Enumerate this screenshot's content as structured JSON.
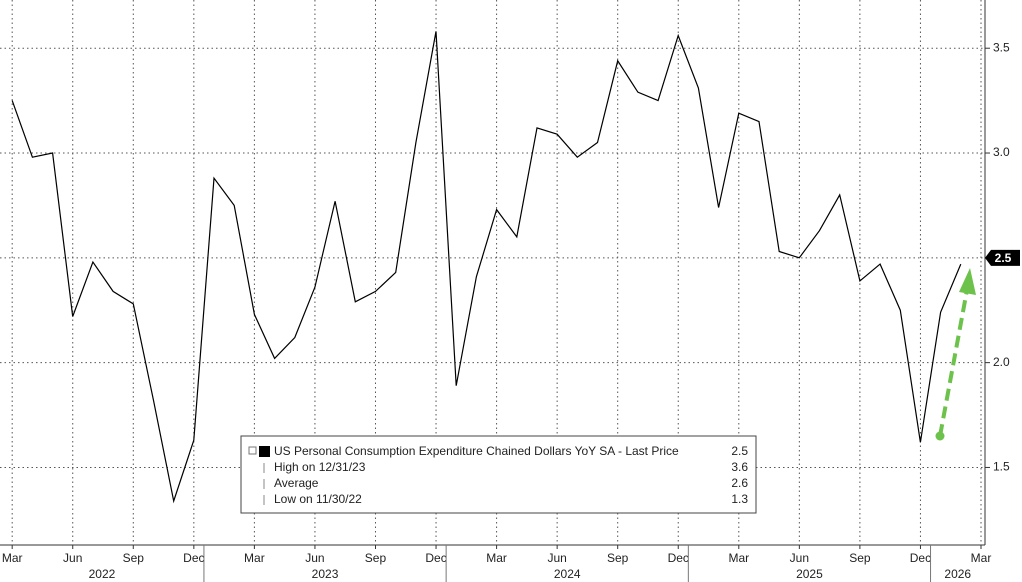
{
  "chart_data": {
    "type": "line",
    "x": [
      "2022-03",
      "2022-04",
      "2022-05",
      "2022-06",
      "2022-07",
      "2022-08",
      "2022-09",
      "2022-10",
      "2022-11",
      "2022-12",
      "2023-01",
      "2023-02",
      "2023-03",
      "2023-04",
      "2023-05",
      "2023-06",
      "2023-07",
      "2023-08",
      "2023-09",
      "2023-10",
      "2023-11",
      "2023-12",
      "2024-01",
      "2024-02",
      "2024-03",
      "2024-04",
      "2024-05",
      "2024-06",
      "2024-07",
      "2024-08",
      "2024-09",
      "2024-10",
      "2024-11",
      "2024-12",
      "2025-01",
      "2025-02",
      "2025-03",
      "2025-04",
      "2025-05",
      "2025-06",
      "2025-07",
      "2025-08",
      "2025-09",
      "2025-10",
      "2025-11",
      "2025-12",
      "2026-01",
      "2026-02"
    ],
    "series": [
      {
        "name": "US Personal Consumption Expenditure Chained Dollars YoY SA - Last Price",
        "color": "#000000",
        "values": [
          3.25,
          2.98,
          3.0,
          2.22,
          2.48,
          2.34,
          2.28,
          1.82,
          1.34,
          1.63,
          2.88,
          2.75,
          2.23,
          2.02,
          2.12,
          2.36,
          2.77,
          2.29,
          2.34,
          2.43,
          3.05,
          3.58,
          1.89,
          2.41,
          2.73,
          2.6,
          3.12,
          3.09,
          2.98,
          3.05,
          3.44,
          3.29,
          3.25,
          3.56,
          3.31,
          2.74,
          3.19,
          3.15,
          2.53,
          2.5,
          2.63,
          2.8,
          2.39,
          2.47,
          2.25,
          1.62,
          2.24,
          2.47
        ]
      }
    ],
    "xlim": [
      "2022-02",
      "2026-03"
    ],
    "xticks": [
      {
        "value": "2022-03",
        "label": "Mar"
      },
      {
        "value": "2022-06",
        "label": "Jun"
      },
      {
        "value": "2022-09",
        "label": "Sep"
      },
      {
        "value": "2022-12",
        "label": "Dec"
      },
      {
        "value": "2023-03",
        "label": "Mar"
      },
      {
        "value": "2023-06",
        "label": "Jun"
      },
      {
        "value": "2023-09",
        "label": "Sep"
      },
      {
        "value": "2023-12",
        "label": "Dec"
      },
      {
        "value": "2024-03",
        "label": "Mar"
      },
      {
        "value": "2024-06",
        "label": "Jun"
      },
      {
        "value": "2024-09",
        "label": "Sep"
      },
      {
        "value": "2024-12",
        "label": "Dec"
      },
      {
        "value": "2025-03",
        "label": "Mar"
      },
      {
        "value": "2025-06",
        "label": "Jun"
      },
      {
        "value": "2025-09",
        "label": "Sep"
      },
      {
        "value": "2025-12",
        "label": "Dec"
      },
      {
        "value": "2026-03",
        "label": "Mar"
      }
    ],
    "years": [
      "2022",
      "2023",
      "2024",
      "2025",
      "2026"
    ],
    "ylim": [
      1.13,
      3.73
    ],
    "yticks": [
      1.5,
      2.0,
      2.5,
      3.0,
      3.5
    ],
    "yticks_labels": [
      "1.5",
      "2.0",
      "2.5",
      "3.0",
      "3.5"
    ],
    "grid": true,
    "last_price": 2.5,
    "legend": {
      "title": "US Personal Consumption Expenditure Chained Dollars YoY SA - Last Price",
      "title_value": 2.5,
      "rows": [
        {
          "label": "High on 12/31/23",
          "value": 3.6
        },
        {
          "label": "Average",
          "value": 2.6
        },
        {
          "label": "Low on 11/30/22",
          "value": 1.3
        }
      ]
    }
  }
}
